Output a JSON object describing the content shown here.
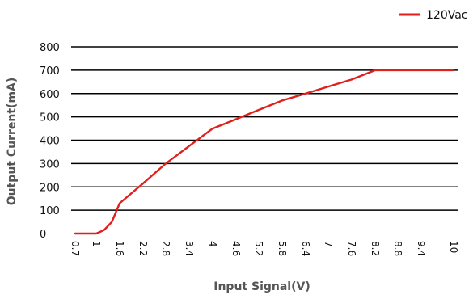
{
  "chart_data": {
    "type": "line",
    "title": "",
    "xlabel": "Input  Signal(V)",
    "ylabel": "Output  Current(mA)",
    "ylim": [
      0,
      800
    ],
    "yticks": [
      0,
      100,
      200,
      300,
      400,
      500,
      600,
      700,
      800
    ],
    "xticks": [
      "0.7",
      "1",
      "1.6",
      "2.2",
      "2.8",
      "3.4",
      "4",
      "4.6",
      "5.2",
      "5.8",
      "6.4",
      "7",
      "7.6",
      "8.2",
      "8.8",
      "9.4",
      "10"
    ],
    "grid": true,
    "legend_position": "top-right",
    "series": [
      {
        "name": "120Vac",
        "color": "#e0201c",
        "points": [
          {
            "x": 0.7,
            "y": 0
          },
          {
            "x": 1.0,
            "y": 0
          },
          {
            "x": 1.2,
            "y": 15
          },
          {
            "x": 1.4,
            "y": 50
          },
          {
            "x": 1.6,
            "y": 130
          },
          {
            "x": 2.2,
            "y": 215
          },
          {
            "x": 2.8,
            "y": 300
          },
          {
            "x": 3.4,
            "y": 375
          },
          {
            "x": 4.0,
            "y": 450
          },
          {
            "x": 4.6,
            "y": 490
          },
          {
            "x": 5.2,
            "y": 530
          },
          {
            "x": 5.8,
            "y": 570
          },
          {
            "x": 6.4,
            "y": 600
          },
          {
            "x": 7.0,
            "y": 630
          },
          {
            "x": 7.6,
            "y": 660
          },
          {
            "x": 8.2,
            "y": 700
          },
          {
            "x": 8.8,
            "y": 700
          },
          {
            "x": 9.4,
            "y": 700
          },
          {
            "x": 10.0,
            "y": 700
          }
        ]
      }
    ]
  }
}
